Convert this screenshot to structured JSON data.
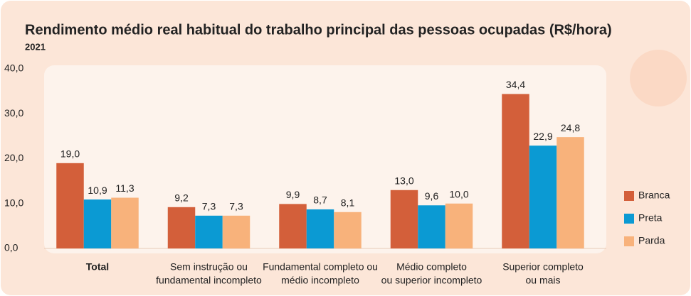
{
  "chart_data": {
    "type": "bar",
    "title": "Rendimento médio real habitual do trabalho principal das pessoas ocupadas (R$/hora)",
    "subtitle": "2021",
    "categories": [
      [
        "Total"
      ],
      [
        "Sem instrução ou",
        "fundamental incompleto"
      ],
      [
        "Fundamental completo ou",
        "médio incompleto"
      ],
      [
        "Médio completo",
        "ou superior incompleto"
      ],
      [
        "Superior completo",
        "ou mais"
      ]
    ],
    "series": [
      {
        "name": "Branca",
        "color": "#d35f3a",
        "values": [
          19.0,
          9.2,
          9.9,
          13.0,
          34.4
        ],
        "value_labels": [
          "19,0",
          "9,2",
          "9,9",
          "13,0",
          "34,4"
        ]
      },
      {
        "name": "Preta",
        "color": "#0b9ad3",
        "values": [
          10.9,
          7.3,
          8.7,
          9.6,
          22.9
        ],
        "value_labels": [
          "10,9",
          "7,3",
          "8,7",
          "9,6",
          "22,9"
        ]
      },
      {
        "name": "Parda",
        "color": "#f8b27b",
        "values": [
          11.3,
          7.3,
          8.1,
          10.0,
          24.8
        ],
        "value_labels": [
          "11,3",
          "7,3",
          "8,1",
          "10,0",
          "24,8"
        ]
      }
    ],
    "ylim": [
      0,
      40
    ],
    "yticks": [
      {
        "value": 0,
        "label": "0,0"
      },
      {
        "value": 10,
        "label": "10,0"
      },
      {
        "value": 20,
        "label": "20,0"
      },
      {
        "value": 30,
        "label": "30,0"
      },
      {
        "value": 40,
        "label": "40,0"
      }
    ],
    "legend": "right"
  }
}
